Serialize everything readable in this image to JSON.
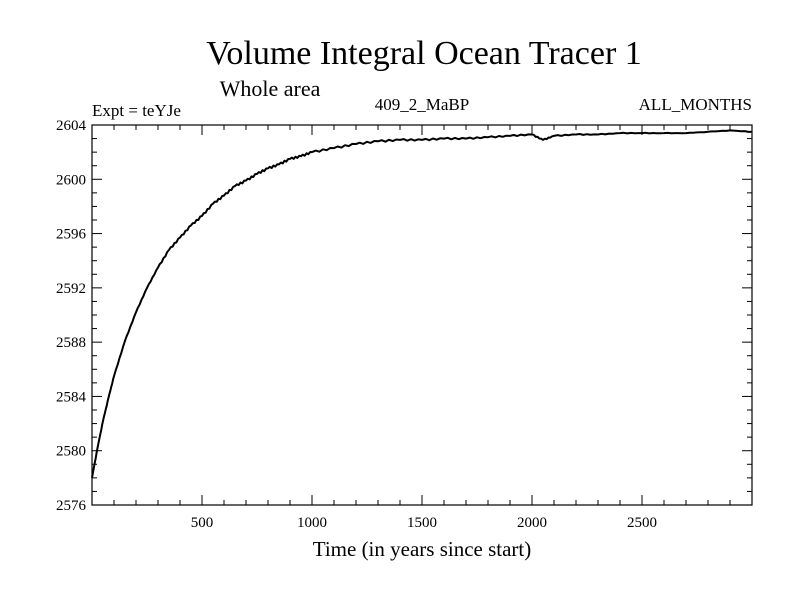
{
  "chart_data": {
    "type": "line",
    "title": "Volume Integral Ocean Tracer 1",
    "subtitle": "Whole area",
    "annotations": {
      "left": "Expt = teYJe",
      "center": "409_2_MaBP",
      "right": "ALL_MONTHS"
    },
    "xlabel": "Time (in years since start)",
    "ylabel": "",
    "xlim": [
      0,
      3000
    ],
    "ylim": [
      2576,
      2604
    ],
    "x_ticks": [
      500,
      1000,
      1500,
      2000,
      2500
    ],
    "y_ticks": [
      2576,
      2580,
      2584,
      2588,
      2592,
      2596,
      2600,
      2604
    ],
    "grid": false,
    "series": [
      {
        "color": "#000000",
        "x": [
          0,
          25,
          50,
          75,
          100,
          150,
          200,
          250,
          300,
          350,
          400,
          450,
          500,
          550,
          600,
          650,
          700,
          750,
          800,
          850,
          900,
          950,
          1000,
          1100,
          1200,
          1300,
          1400,
          1500,
          1600,
          1700,
          1800,
          1900,
          2000,
          2050,
          2100,
          2200,
          2300,
          2400,
          2500,
          2600,
          2700,
          2800,
          2900,
          3000
        ],
        "values": [
          2578.0,
          2580.2,
          2582.2,
          2583.9,
          2585.5,
          2588.1,
          2590.2,
          2592.0,
          2593.5,
          2594.8,
          2595.7,
          2596.6,
          2597.3,
          2598.2,
          2598.8,
          2599.5,
          2599.9,
          2600.4,
          2600.8,
          2601.1,
          2601.5,
          2601.7,
          2602.0,
          2602.3,
          2602.6,
          2602.8,
          2602.9,
          2602.9,
          2603.0,
          2603.0,
          2603.1,
          2603.2,
          2603.3,
          2602.9,
          2603.2,
          2603.3,
          2603.3,
          2603.4,
          2603.4,
          2603.4,
          2603.4,
          2603.5,
          2603.6,
          2603.5
        ]
      }
    ]
  }
}
